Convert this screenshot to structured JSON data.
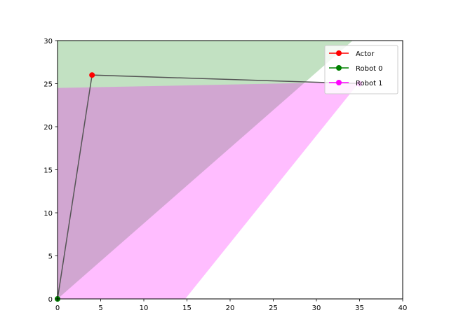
{
  "chart_data": {
    "type": "line",
    "xlim": [
      0,
      40
    ],
    "ylim": [
      0,
      30
    ],
    "x_ticks": [
      0,
      5,
      10,
      15,
      20,
      25,
      30,
      35,
      40
    ],
    "y_ticks": [
      0,
      5,
      10,
      15,
      20,
      25,
      30
    ],
    "grid": false,
    "legend_position": "top-right",
    "regions": [
      {
        "name": "robot-0-region",
        "color": "#008000",
        "opacity": 0.24,
        "polygon": [
          [
            0,
            0
          ],
          [
            0,
            30
          ],
          [
            34.2,
            30
          ],
          [
            34.2,
            30
          ],
          [
            0,
            0
          ]
        ]
      },
      {
        "name": "robot-1-region",
        "color": "#ff00ff",
        "opacity": 0.26,
        "polygon": [
          [
            0,
            0
          ],
          [
            0,
            24.5
          ],
          [
            35.0,
            25.2
          ],
          [
            14.8,
            0
          ]
        ]
      }
    ],
    "path": {
      "name": "path",
      "color": "#555555",
      "points": [
        [
          0,
          0
        ],
        [
          4,
          26
        ],
        [
          35,
          25
        ]
      ]
    },
    "series": [
      {
        "name": "Actor",
        "color": "#ff0000",
        "points": [
          [
            4,
            26
          ]
        ]
      },
      {
        "name": "Robot 0",
        "color": "#008000",
        "points": [
          [
            0,
            0
          ]
        ]
      },
      {
        "name": "Robot 1",
        "color": "#ff00ff",
        "points": [
          [
            35,
            25
          ]
        ]
      }
    ]
  }
}
